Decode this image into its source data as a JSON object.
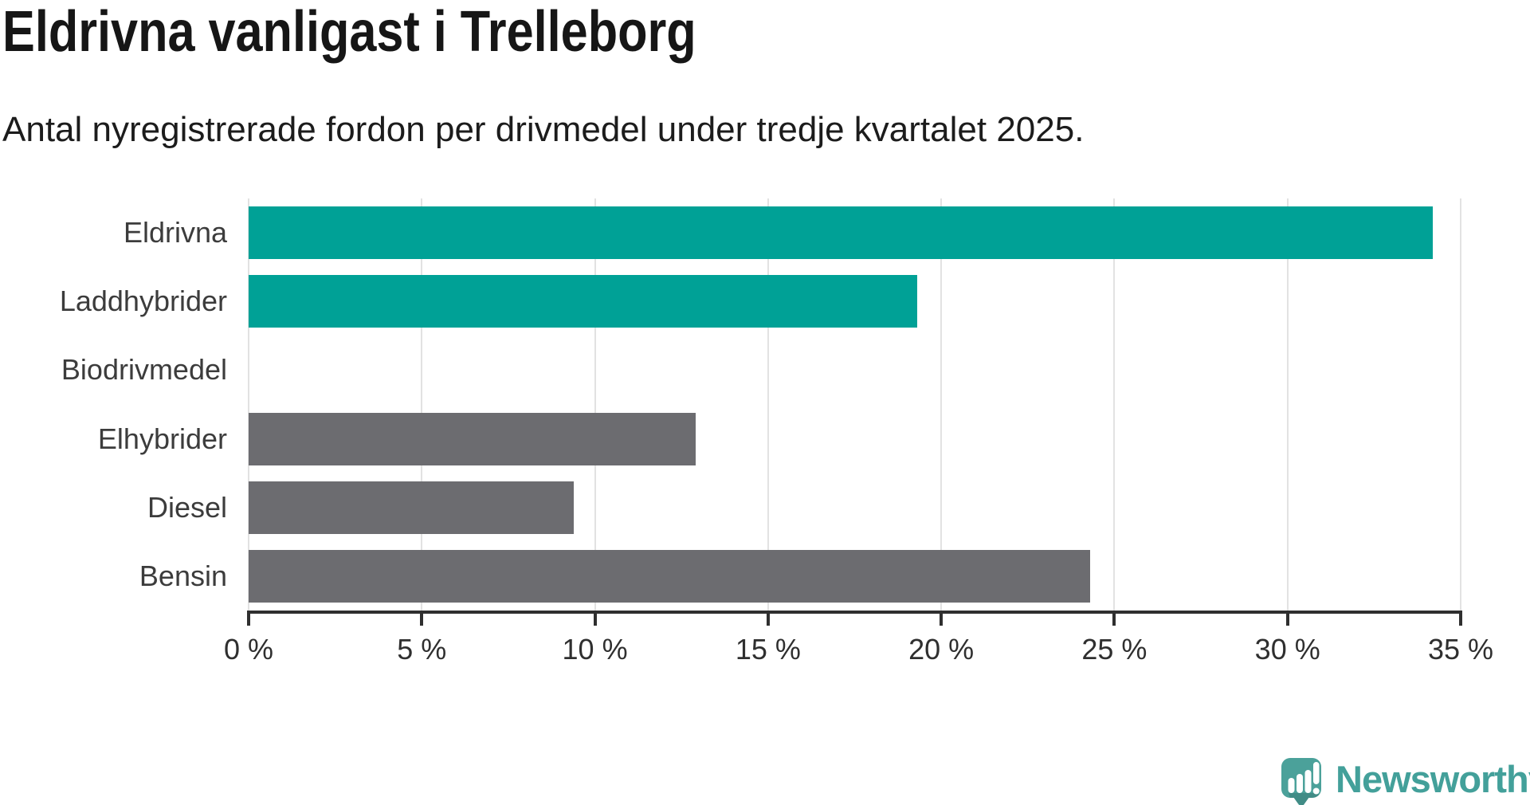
{
  "chart_data": {
    "type": "bar",
    "orientation": "horizontal",
    "title": "Eldrivna vanligast i Trelleborg",
    "subtitle": "Antal nyregistrerade fordon per drivmedel under tredje kvartalet 2025.",
    "categories": [
      "Eldrivna",
      "Laddhybrider",
      "Biodrivmedel",
      "Elhybrider",
      "Diesel",
      "Bensin"
    ],
    "values": [
      34.2,
      19.3,
      0,
      12.9,
      9.4,
      24.3
    ],
    "unit": "%",
    "xlim": [
      0,
      35
    ],
    "x_ticks": [
      0,
      5,
      10,
      15,
      20,
      25,
      30,
      35
    ],
    "x_tick_labels": [
      "0 %",
      "5 %",
      "10 %",
      "15 %",
      "20 %",
      "25 %",
      "30 %",
      "35 %"
    ],
    "grid": true,
    "legend": "none",
    "bar_colors": [
      "#00a196",
      "#00a196",
      "#6c6c70",
      "#6c6c70",
      "#6c6c70",
      "#6c6c70"
    ],
    "highlight_color": "#00a196",
    "default_color": "#6c6c70",
    "axis_color": "#2f2f2f",
    "gridline_color": "#e2e2e2"
  },
  "branding": {
    "logo_text": "Newsworthy",
    "logo_icon": "newsworthy-pin-icon",
    "logo_color": "#43a09a",
    "logo_icon_fill": "#4ba19a"
  }
}
